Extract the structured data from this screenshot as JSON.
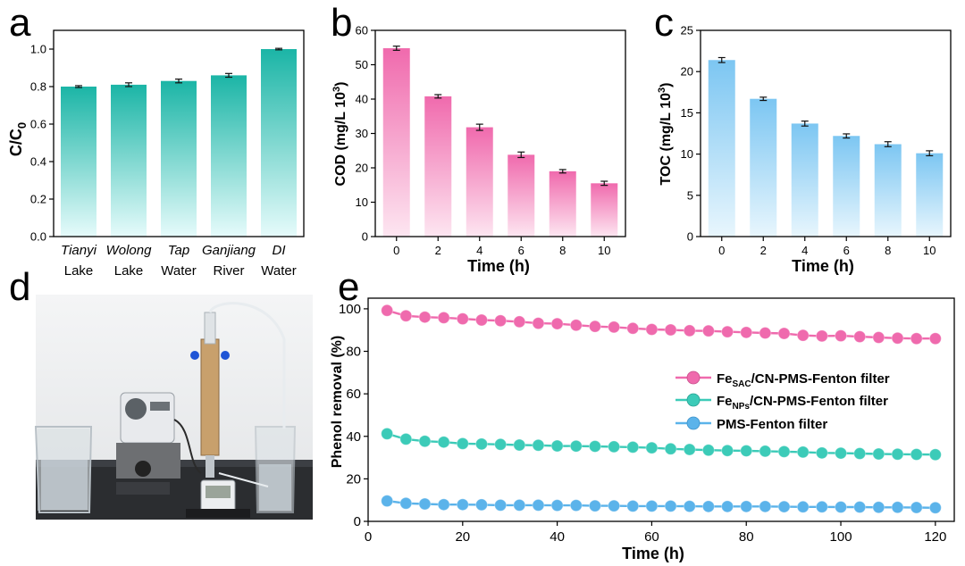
{
  "figure": {
    "panel_letters": [
      "a",
      "b",
      "c",
      "d",
      "e"
    ]
  },
  "chart_data": [
    {
      "id": "a",
      "type": "bar",
      "title": "",
      "xlabel": "",
      "ylabel": "C/C",
      "ylabel_sub": "0",
      "categories": [
        {
          "line1": "Tianyi",
          "line2": "Lake"
        },
        {
          "line1": "Wolong",
          "line2": "Lake"
        },
        {
          "line1": "Tap",
          "line2": "Water"
        },
        {
          "line1": "Ganjiang",
          "line2": "River"
        },
        {
          "line1": "DI",
          "line2": "Water"
        }
      ],
      "values": [
        0.8,
        0.81,
        0.83,
        0.86,
        1.0
      ],
      "errors": [
        0.005,
        0.01,
        0.01,
        0.01,
        0.004
      ],
      "ylim": [
        0,
        1.1
      ],
      "yticks": [
        0,
        0.2,
        0.4,
        0.6,
        0.8,
        1.0
      ],
      "ytick_labels": [
        "0.0",
        "0.2",
        "0.4",
        "0.6",
        "0.8",
        "1.0"
      ],
      "color_top": "#1bb5a6",
      "color_bottom": "#e6fbfb"
    },
    {
      "id": "b",
      "type": "bar",
      "title": "",
      "xlabel": "Time (h)",
      "ylabel": "COD (mg/L 10",
      "ylabel_sup": "3",
      "ylabel_end": ")",
      "categories": [
        "0",
        "2",
        "4",
        "6",
        "8",
        "10"
      ],
      "values": [
        54.8,
        40.8,
        31.8,
        23.8,
        19.0,
        15.5
      ],
      "errors": [
        0.6,
        0.5,
        0.9,
        0.8,
        0.5,
        0.6
      ],
      "ylim": [
        0,
        60
      ],
      "yticks": [
        0,
        10,
        20,
        30,
        40,
        50,
        60
      ],
      "ytick_labels": [
        "0",
        "10",
        "20",
        "30",
        "40",
        "50",
        "60"
      ],
      "color_top": "#f06aad",
      "color_bottom": "#fde6f1"
    },
    {
      "id": "c",
      "type": "bar",
      "title": "",
      "xlabel": "Time (h)",
      "ylabel": "TOC (mg/L 10",
      "ylabel_sup": "3",
      "ylabel_end": ")",
      "categories": [
        "0",
        "2",
        "4",
        "6",
        "8",
        "10"
      ],
      "values": [
        21.4,
        16.7,
        13.7,
        12.2,
        11.2,
        10.1
      ],
      "errors": [
        0.3,
        0.2,
        0.3,
        0.25,
        0.3,
        0.3
      ],
      "ylim": [
        0,
        25
      ],
      "yticks": [
        0,
        5,
        10,
        15,
        20,
        25
      ],
      "ytick_labels": [
        "0",
        "5",
        "10",
        "15",
        "20",
        "25"
      ],
      "color_top": "#7cc6f2",
      "color_bottom": "#e8f6fd"
    },
    {
      "id": "e",
      "type": "line",
      "title": "",
      "xlabel": "Time (h)",
      "ylabel": "Phenol removal (%)",
      "xlim": [
        0,
        124
      ],
      "ylim": [
        0,
        105
      ],
      "xticks": [
        0,
        20,
        40,
        60,
        80,
        100,
        120
      ],
      "yticks": [
        0,
        20,
        40,
        60,
        80,
        100
      ],
      "x": [
        4,
        8,
        12,
        16,
        20,
        24,
        28,
        32,
        36,
        40,
        44,
        48,
        52,
        56,
        60,
        64,
        68,
        72,
        76,
        80,
        84,
        88,
        92,
        96,
        100,
        104,
        108,
        112,
        116,
        120
      ],
      "legend_position": "center-right",
      "series": [
        {
          "name": "Fe",
          "name_sub": "SAC",
          "name_rest": "/CN-PMS-Fenton filter",
          "color": "#ef6aad",
          "values": [
            99.2,
            96.7,
            96.1,
            95.8,
            95.3,
            94.7,
            94.4,
            93.9,
            93.2,
            93.0,
            92.3,
            91.7,
            91.4,
            90.8,
            90.3,
            90.1,
            89.7,
            89.6,
            89.2,
            88.9,
            88.6,
            88.4,
            87.5,
            87.2,
            87.3,
            86.9,
            86.5,
            86.2,
            86.0,
            86.0
          ]
        },
        {
          "name": "Fe",
          "name_sub": "NPs",
          "name_rest": "/CN-PMS-Fenton filter",
          "color": "#3ccbb8",
          "values": [
            41.2,
            38.7,
            37.7,
            37.3,
            36.6,
            36.4,
            36.2,
            35.9,
            35.8,
            35.5,
            35.4,
            35.3,
            35.1,
            34.9,
            34.6,
            34.1,
            33.8,
            33.5,
            33.3,
            33.2,
            33.0,
            32.8,
            32.6,
            32.2,
            32.1,
            31.9,
            31.7,
            31.6,
            31.5,
            31.4
          ]
        },
        {
          "name": "PMS-Fenton filter",
          "name_sub": "",
          "name_rest": "",
          "color": "#5bb3ea",
          "values": [
            9.6,
            8.5,
            8.2,
            7.9,
            7.9,
            7.8,
            7.6,
            7.6,
            7.6,
            7.5,
            7.5,
            7.3,
            7.3,
            7.2,
            7.2,
            7.2,
            7.1,
            7.0,
            7.0,
            7.0,
            7.0,
            6.9,
            6.8,
            6.8,
            6.7,
            6.7,
            6.6,
            6.6,
            6.5,
            6.4
          ]
        }
      ]
    }
  ],
  "photo_d": {
    "description_tag": "photograph"
  }
}
